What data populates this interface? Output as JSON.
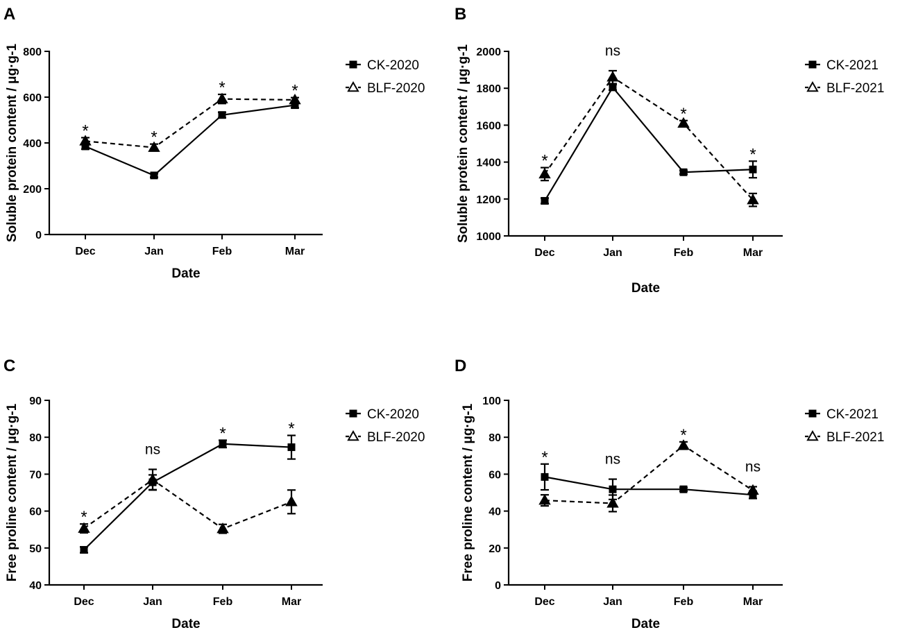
{
  "colors": {
    "ink": "#000000",
    "background": "#ffffff"
  },
  "chart_data": [
    {
      "panel": "A",
      "type": "line",
      "title": "",
      "xlabel": "Date",
      "ylabel": "Soluble protein content / μg·g-1",
      "categories": [
        "Dec",
        "Jan",
        "Feb",
        "Mar"
      ],
      "ylim": [
        0,
        800
      ],
      "yticks": [
        "0",
        "200",
        "400",
        "600",
        "800"
      ],
      "legend_position": "right",
      "series": [
        {
          "name": "CK-2020",
          "marker": "square",
          "style": "solid",
          "values": [
            385,
            258,
            522,
            565
          ],
          "errors": [
            12,
            8,
            12,
            12
          ]
        },
        {
          "name": "BLF-2020",
          "marker": "triangle",
          "style": "dashed",
          "values": [
            408,
            380,
            592,
            588
          ],
          "errors": [
            15,
            15,
            20,
            10
          ]
        }
      ],
      "annotations": [
        "*",
        "*",
        "*",
        "*"
      ]
    },
    {
      "panel": "B",
      "type": "line",
      "title": "",
      "xlabel": "Date",
      "ylabel": "Soluble protein content / μg·g-1",
      "categories": [
        "Dec",
        "Jan",
        "Feb",
        "Mar"
      ],
      "ylim": [
        1000,
        2000
      ],
      "yticks": [
        "1000",
        "1200",
        "1400",
        "1600",
        "1800",
        "2000"
      ],
      "legend_position": "right",
      "series": [
        {
          "name": "CK-2021",
          "marker": "square",
          "style": "solid",
          "values": [
            1190,
            1805,
            1345,
            1360
          ],
          "errors": [
            15,
            15,
            10,
            45
          ]
        },
        {
          "name": "BLF-2021",
          "marker": "triangle",
          "style": "dashed",
          "values": [
            1335,
            1860,
            1610,
            1195
          ],
          "errors": [
            35,
            35,
            15,
            35
          ]
        }
      ],
      "annotations": [
        "*",
        "ns",
        "*",
        "*"
      ]
    },
    {
      "panel": "C",
      "type": "line",
      "title": "",
      "xlabel": "Date",
      "ylabel": "Free proline content / μg·g-1",
      "categories": [
        "Dec",
        "Jan",
        "Feb",
        "Mar"
      ],
      "ylim": [
        40,
        90
      ],
      "yticks": [
        "40",
        "50",
        "60",
        "70",
        "80",
        "90"
      ],
      "legend_position": "right",
      "series": [
        {
          "name": "CK-2020",
          "marker": "square",
          "style": "solid",
          "values": [
            49.5,
            67.8,
            78.2,
            77.3
          ],
          "errors": [
            0.8,
            2.0,
            1.0,
            3.2
          ]
        },
        {
          "name": "BLF-2020",
          "marker": "triangle",
          "style": "dashed",
          "values": [
            55.3,
            68.5,
            55.2,
            62.5
          ],
          "errors": [
            1.2,
            2.8,
            1.2,
            3.2
          ]
        }
      ],
      "annotations": [
        "*",
        "ns",
        "*",
        "*"
      ]
    },
    {
      "panel": "D",
      "type": "line",
      "title": "",
      "xlabel": "Date",
      "ylabel": "Free proline content / μg·g-1",
      "categories": [
        "Dec",
        "Jan",
        "Feb",
        "Mar"
      ],
      "ylim": [
        0,
        100
      ],
      "yticks": [
        "0",
        "20",
        "40",
        "60",
        "80",
        "100"
      ],
      "legend_position": "right",
      "series": [
        {
          "name": "CK-2021",
          "marker": "square",
          "style": "solid",
          "values": [
            58.5,
            51.8,
            51.8,
            48.8
          ],
          "errors": [
            7.0,
            5.5,
            1.0,
            2.0
          ]
        },
        {
          "name": "BLF-2021",
          "marker": "triangle",
          "style": "dashed",
          "values": [
            45.8,
            44.2,
            75.5,
            51.2
          ],
          "errors": [
            3.0,
            4.5,
            2.0,
            2.0
          ]
        }
      ],
      "annotations": [
        "*",
        "ns",
        "*",
        "ns"
      ]
    }
  ]
}
